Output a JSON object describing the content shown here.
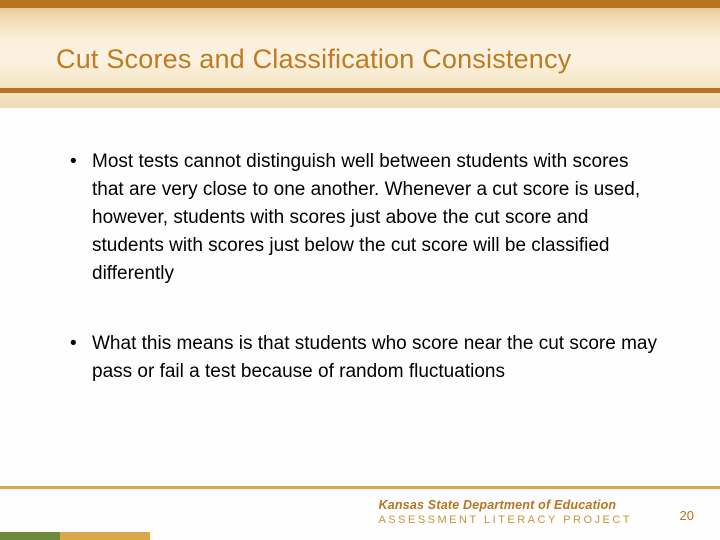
{
  "slide": {
    "title": "Cut Scores and Classification Consistency",
    "bullets": [
      "Most tests cannot distinguish well between students with scores that are very close to one another. Whenever a cut score is used, however, students with scores just above the cut score and students with scores just below the cut score will be classified differently",
      "What this means is that students who score near the cut score may pass or fail a test because of random fluctuations"
    ]
  },
  "footer": {
    "org": "Kansas State Department of Education",
    "project": "ASSESSMENT LITERACY PROJECT",
    "page": "20"
  },
  "colors": {
    "accent_orange": "#b87420",
    "title_orange": "#c17a1e",
    "footer_rule": "#d9a84a",
    "footer_green": "#6b8a3a",
    "band_top": "#e8b97a",
    "band_mid": "#f9eed8"
  }
}
